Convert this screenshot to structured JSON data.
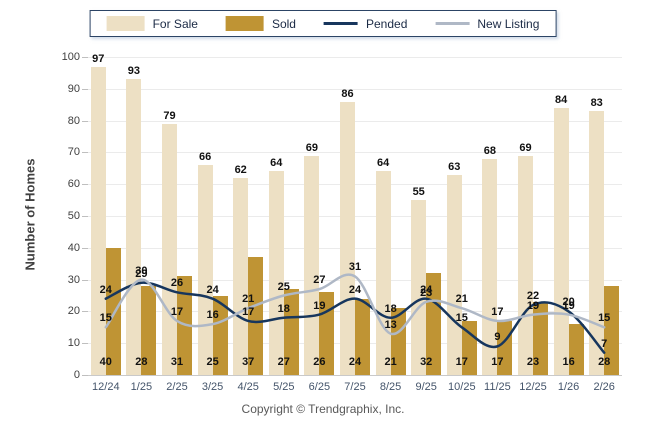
{
  "footer": {
    "text": "Copyright © Trendgraphix, Inc."
  },
  "chart_data": {
    "type": "bar",
    "subtype": "grouped-bars-with-overlaid-lines",
    "title": "",
    "xlabel": "",
    "ylabel": "Number of Homes",
    "ylim": [
      0,
      100
    ],
    "ytick_step": 10,
    "grid": true,
    "legend_position": "top-center",
    "value_labels": true,
    "categories": [
      "12/24",
      "1/25",
      "2/25",
      "3/25",
      "4/25",
      "5/25",
      "6/25",
      "7/25",
      "8/25",
      "9/25",
      "10/25",
      "11/25",
      "12/25",
      "1/26",
      "2/26"
    ],
    "series": [
      {
        "name": "For Sale",
        "type": "bar",
        "color": "#EDE0C4",
        "values": [
          97,
          93,
          79,
          66,
          62,
          64,
          69,
          86,
          64,
          55,
          63,
          68,
          69,
          84,
          83
        ]
      },
      {
        "name": "Sold",
        "type": "bar",
        "color": "#BF9434",
        "values": [
          40,
          28,
          31,
          25,
          37,
          27,
          26,
          24,
          21,
          32,
          17,
          17,
          23,
          16,
          28
        ]
      },
      {
        "name": "Pended",
        "type": "line",
        "color": "#17365D",
        "values": [
          24,
          29,
          26,
          24,
          17,
          18,
          19,
          24,
          18,
          24,
          15,
          9,
          22,
          20,
          7
        ]
      },
      {
        "name": "New Listing",
        "type": "line",
        "color": "#AFB8C6",
        "values": [
          15,
          30,
          17,
          16,
          21,
          25,
          27,
          31,
          13,
          23,
          21,
          17,
          19,
          19,
          15
        ]
      }
    ]
  }
}
